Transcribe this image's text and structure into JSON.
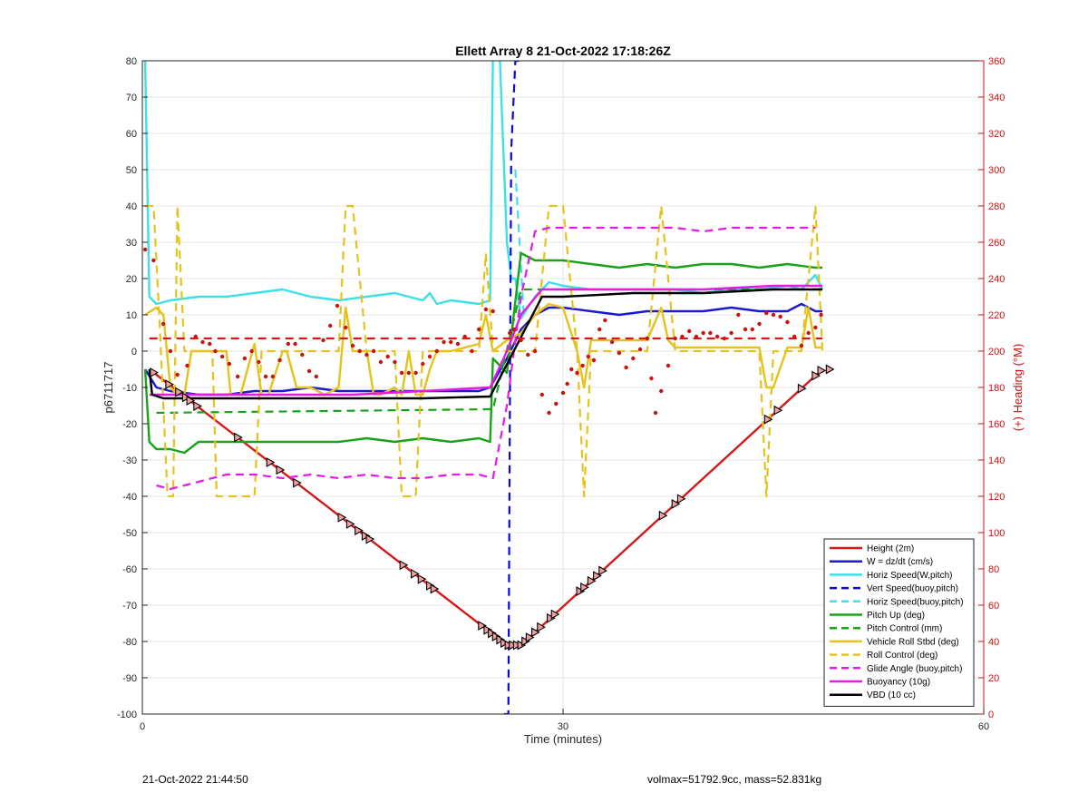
{
  "chart_data": {
    "type": "line",
    "title": "Ellett Array 8 21-Oct-2022 17:18:26Z",
    "xlabel": "Time (minutes)",
    "ylabel": "p6711717",
    "y2label": "(+) Heading (°M)",
    "xlim": [
      0,
      60
    ],
    "ylim": [
      -100,
      80
    ],
    "y2lim": [
      0,
      360
    ],
    "xticks": [
      0,
      30,
      60
    ],
    "yticks": [
      -100,
      -90,
      -80,
      -70,
      -60,
      -50,
      -40,
      -30,
      -20,
      -10,
      0,
      10,
      20,
      30,
      40,
      50,
      60,
      70,
      80
    ],
    "y2ticks": [
      0,
      20,
      40,
      60,
      80,
      100,
      120,
      140,
      160,
      180,
      200,
      220,
      240,
      260,
      280,
      300,
      320,
      340,
      360
    ],
    "grid": true,
    "legend_position": "bottom-right",
    "colors": {
      "red": "#d21a1a",
      "blue": "#1a1ad2",
      "cyan": "#3ee0e8",
      "navy": "#0a0ad8",
      "green": "#19a319",
      "yellow": "#e6c21c",
      "magenta": "#e619e6",
      "black": "#000000",
      "heading": "#cc1111"
    },
    "series": [
      {
        "name": "Height (2m)",
        "color": "#d21a1a",
        "dash": false,
        "x": [
          0.5,
          26,
          27,
          48.5
        ],
        "y": [
          -5,
          -81,
          -81,
          -5
        ]
      },
      {
        "name": "W = dz/dt (cm/s)",
        "color": "#1a1ad2",
        "dash": false,
        "x": [
          0.2,
          1,
          2,
          4,
          6,
          8,
          10,
          12,
          14,
          16,
          18,
          20,
          22,
          24,
          24.8,
          26,
          27,
          28,
          29,
          30,
          32,
          34,
          36,
          38,
          40,
          42,
          44,
          46,
          47,
          48,
          48.5
        ],
        "y": [
          -5,
          -10,
          -11,
          -12,
          -12,
          -11,
          -11,
          -10,
          -11,
          -11,
          -11,
          -11,
          -11,
          -11,
          -10,
          -2,
          6,
          10,
          12,
          12,
          11,
          10,
          11,
          11,
          11,
          12,
          11,
          11,
          13,
          11,
          11
        ]
      },
      {
        "name": "Horiz Speed(W,pitch)",
        "color": "#3ee0e8",
        "dash": false,
        "x": [
          0.2,
          0.5,
          1,
          2,
          4,
          6,
          8,
          10,
          11,
          12,
          14,
          16,
          18,
          20,
          20.5,
          21,
          22,
          24,
          24.8,
          25,
          25.5,
          26,
          26.3,
          26.6,
          27,
          28,
          29,
          30,
          32,
          34,
          36,
          38,
          40,
          42,
          44,
          46,
          47,
          48,
          48.5
        ],
        "y": [
          80,
          15,
          13,
          14,
          15,
          15,
          16,
          17,
          16,
          15,
          14,
          15,
          16,
          14,
          16,
          13,
          14,
          13,
          14,
          82,
          80,
          30,
          20,
          20,
          9,
          15,
          19,
          18,
          17,
          17,
          17,
          17,
          16,
          17,
          17,
          18,
          17,
          21,
          17
        ]
      },
      {
        "name": "Vert Speed(buoy,pitch)",
        "color": "#0a0ad8",
        "dash": true,
        "x": [
          25.8,
          26.1,
          26.3,
          26.6,
          27.0
        ],
        "y": [
          -100,
          -100,
          55,
          80,
          80
        ]
      },
      {
        "name": "Horiz Speed(buoy,pitch)",
        "color": "#3ee0e8",
        "dash": true,
        "x": [
          26.6,
          27.2
        ],
        "y": [
          50,
          10
        ]
      },
      {
        "name": "Pitch Up (deg)",
        "color": "#19a319",
        "dash": false,
        "x": [
          0.2,
          0.5,
          1,
          2,
          3,
          4,
          6,
          8,
          10,
          12,
          14,
          16,
          18,
          20,
          22,
          24,
          24.8,
          25,
          26,
          27,
          28,
          29,
          30,
          32,
          34,
          36,
          38,
          40,
          42,
          44,
          46,
          48,
          48.5
        ],
        "y": [
          -5,
          -25,
          -27,
          -27,
          -28,
          -25,
          -25,
          -25,
          -25,
          -25,
          -25,
          -24,
          -25,
          -24,
          -25,
          -24,
          -25,
          -2,
          -6,
          27,
          25,
          25,
          25,
          24,
          23,
          24,
          23,
          24,
          24,
          23,
          24,
          23,
          23
        ]
      },
      {
        "name": "Pitch Control (mm)",
        "color": "#19a319",
        "dash": true,
        "x": [
          1,
          25,
          27,
          48.5
        ],
        "y": [
          -17,
          -16,
          17,
          17
        ]
      },
      {
        "name": "Vehicle Roll Stbd (deg)",
        "color": "#e6c21c",
        "dash": false,
        "x": [
          0.2,
          1,
          1.5,
          2,
          2.5,
          3,
          3.5,
          4,
          6,
          6.3,
          7,
          8,
          8.5,
          9,
          10,
          10.3,
          11,
          12,
          13,
          14,
          14.5,
          15,
          16,
          16.5,
          17,
          18,
          18.5,
          19,
          19.5,
          20,
          20.5,
          21,
          22,
          24,
          24.5,
          25,
          26,
          27,
          28,
          29,
          30,
          31,
          31.5,
          32,
          33,
          36,
          37,
          37.5,
          38,
          44,
          44.5,
          45,
          46,
          47,
          47.5,
          48,
          48.5
        ],
        "y": [
          10,
          12,
          10,
          -10,
          -12,
          -12,
          0,
          0,
          0,
          -12,
          -12,
          2,
          -12,
          -12,
          0,
          0,
          -10,
          -10,
          -12,
          -10,
          12,
          0,
          0,
          -12,
          -12,
          -10,
          -12,
          0,
          -12,
          -12,
          -5,
          0,
          0,
          2,
          10,
          0,
          3,
          5,
          10,
          13,
          12,
          0,
          -10,
          3,
          3,
          3,
          12,
          3,
          1,
          1,
          -10,
          -10,
          1,
          1,
          12,
          1,
          1
        ]
      },
      {
        "name": "Roll Control (deg)",
        "color": "#e6c21c",
        "dash": true,
        "x": [
          0.2,
          0.8,
          1.2,
          1.8,
          2.2,
          2.5,
          3,
          5,
          5.3,
          8,
          8.5,
          14,
          14.5,
          15,
          16,
          18,
          18.5,
          19.5,
          20,
          24,
          24.5,
          25,
          28,
          29,
          30,
          31,
          31.5,
          32,
          36,
          37,
          38,
          44,
          44.5,
          45,
          47,
          48,
          48.5
        ],
        "y": [
          40,
          40,
          10,
          -40,
          -40,
          40,
          0,
          0,
          -40,
          -40,
          0,
          0,
          40,
          40,
          0,
          0,
          -40,
          -40,
          0,
          0,
          27,
          0,
          0,
          40,
          40,
          0,
          -40,
          0,
          0,
          40,
          0,
          0,
          -40,
          0,
          0,
          40,
          0
        ]
      },
      {
        "name": "Glide Angle (buoy,pitch)",
        "color": "#e619e6",
        "dash": true,
        "x": [
          1,
          2,
          3,
          4,
          6,
          8,
          10,
          12,
          14,
          16,
          18,
          20,
          22,
          24,
          25,
          26,
          27,
          28,
          29,
          30,
          32,
          34,
          36,
          38,
          40,
          42,
          44,
          46,
          48
        ],
        "y": [
          -37,
          -38,
          -37,
          -36,
          -34,
          -34,
          -35,
          -34,
          -35,
          -34,
          -35,
          -35,
          -34,
          -34,
          -35,
          -15,
          15,
          33,
          34,
          34,
          34,
          34,
          34,
          34,
          33,
          34,
          34,
          34,
          34
        ]
      },
      {
        "name": "Buoyancy (10g)",
        "color": "#e619e6",
        "dash": false,
        "x": [
          0.5,
          2,
          5,
          10,
          15,
          20,
          24.8,
          26,
          27,
          28.5,
          30,
          35,
          40,
          45,
          48.5
        ],
        "y": [
          -12,
          -12,
          -12,
          -12,
          -12,
          -11,
          -10,
          0,
          10,
          17,
          17,
          17,
          17,
          18,
          18
        ]
      },
      {
        "name": "VBD (10 cc)",
        "color": "#000000",
        "dash": false,
        "x": [
          0.5,
          0.7,
          1.5,
          5,
          10,
          15,
          20,
          24.8,
          28.5,
          30,
          35,
          40,
          45,
          48.5
        ],
        "y": [
          -5,
          -12,
          -13,
          -13,
          -13,
          -13,
          -13,
          -12.5,
          15,
          15,
          16,
          16,
          17,
          17
        ]
      },
      {
        "name": "",
        "color": "#d21a1a",
        "dash": true,
        "x": [
          0.5,
          48.5
        ],
        "y": [
          3.5,
          3.5
        ]
      }
    ],
    "heading_points": {
      "color": "#cc1111",
      "x": [
        0.2,
        0.8,
        1.5,
        2.0,
        2.5,
        3.2,
        3.8,
        4.3,
        4.8,
        5.2,
        5.7,
        6.2,
        6.8,
        7.3,
        7.8,
        8.3,
        8.8,
        9.3,
        9.8,
        10.4,
        10.9,
        11.4,
        11.9,
        12.4,
        12.9,
        13.4,
        13.9,
        14.5,
        15.0,
        15.5,
        16.0,
        16.5,
        17.0,
        17.5,
        18.0,
        18.5,
        19.0,
        19.5,
        20.0,
        20.5,
        21.0,
        21.5,
        22.0,
        22.5,
        23.0,
        23.5,
        24.0,
        24.5,
        25.0,
        26.2,
        26.5,
        27.0,
        27.5,
        28.0,
        28.5,
        29.0,
        29.5,
        30.0,
        30.3,
        30.6,
        31.0,
        31.4,
        31.8,
        32.2,
        32.6,
        33.0,
        33.5,
        34.0,
        34.5,
        35.0,
        35.5,
        36.0,
        36.3,
        36.6,
        37.0,
        37.5,
        38.0,
        38.5,
        39.0,
        39.5,
        40.0,
        40.5,
        41.0,
        41.5,
        42.0,
        42.5,
        43.0,
        43.5,
        44.0,
        44.5,
        45.0,
        45.5,
        46.0,
        46.5,
        47.0,
        47.5,
        48.0,
        48.4
      ],
      "y": [
        256,
        250,
        215,
        200,
        187,
        192,
        208,
        205,
        204,
        200,
        197,
        193,
        186,
        196,
        200,
        194,
        186,
        186,
        195,
        204,
        204,
        198,
        189,
        186,
        206,
        214,
        225,
        213,
        203,
        200,
        198,
        200,
        194,
        197,
        194,
        188,
        188,
        188,
        193,
        197,
        200,
        205,
        205,
        204,
        208,
        200,
        212,
        223,
        222,
        210,
        212,
        206,
        198,
        200,
        176,
        166,
        171,
        177,
        182,
        190,
        188,
        192,
        197,
        195,
        212,
        217,
        205,
        199,
        191,
        196,
        201,
        207,
        185,
        166,
        178,
        192,
        207,
        208,
        211,
        208,
        210,
        210,
        208,
        207,
        210,
        220,
        212,
        212,
        215,
        221,
        220,
        219,
        216,
        208,
        203,
        210,
        213,
        220
      ]
    },
    "height_markers_x": [
      0.8,
      1.9,
      2.6,
      3.1,
      3.4,
      3.9,
      6.8,
      9.1,
      9.8,
      11.0,
      14.2,
      14.8,
      15.4,
      15.9,
      16.2,
      18.6,
      19.4,
      19.9,
      20.5,
      20.8,
      24.2,
      24.6,
      24.9,
      25.2,
      25.5,
      25.8,
      26.1,
      26.4,
      26.7,
      27.0,
      27.3,
      27.6,
      28.0,
      28.4,
      29.1,
      29.4,
      31.2,
      31.5,
      32.0,
      32.4,
      32.8,
      37.1,
      38.0,
      38.4,
      44.6,
      45.3,
      47.0,
      48.0,
      48.4,
      49.0
    ]
  },
  "footer": {
    "left": "21-Oct-2022 21:44:50",
    "right": "volmax=51792.9cc, mass=52.831kg"
  }
}
